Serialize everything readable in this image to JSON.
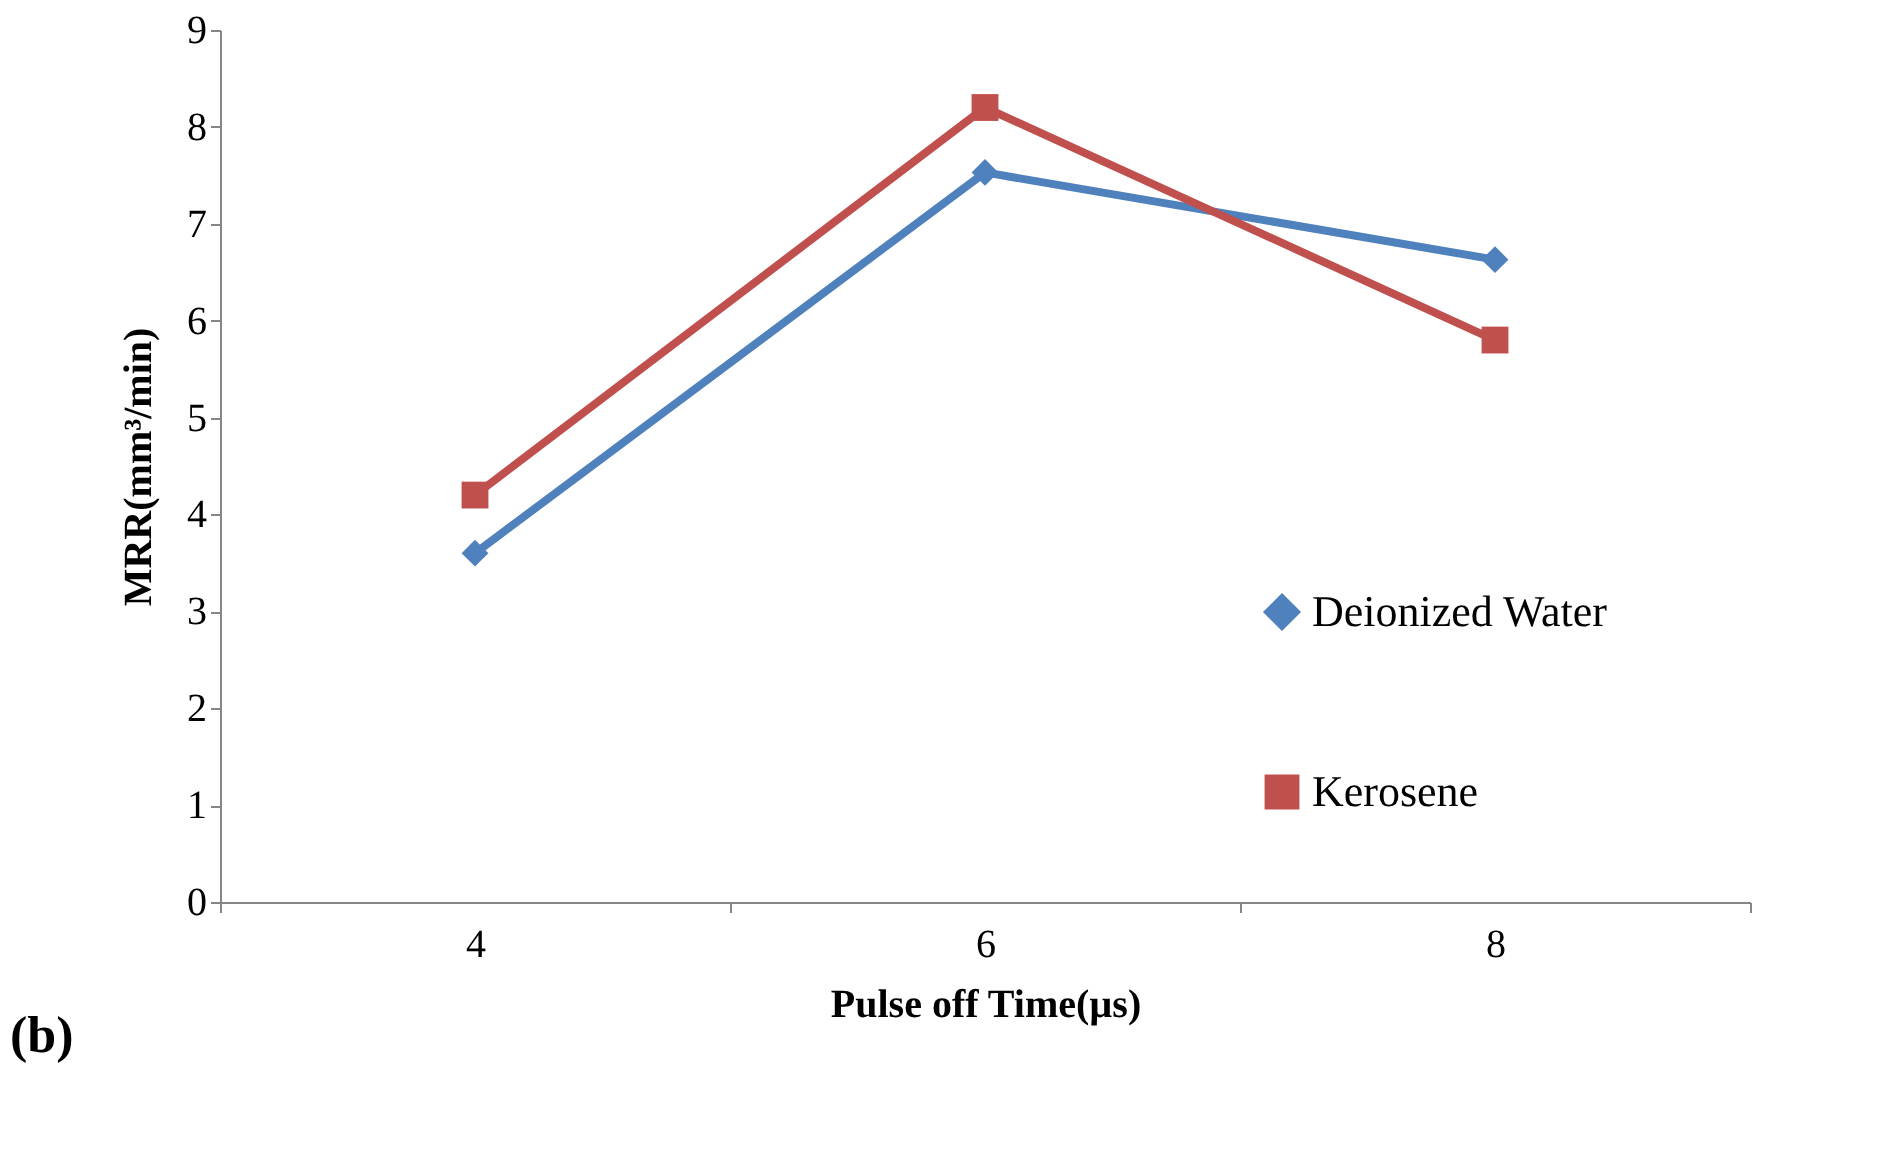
{
  "chart_data": {
    "type": "line",
    "xlabel": "Pulse off Time(µs)",
    "ylabel": "MRR(mm³/min)",
    "categories": [
      "4",
      "6",
      "8"
    ],
    "series": [
      {
        "name": "Deionized Water",
        "color": "#4f81bd",
        "marker": "diamond",
        "values": [
          3.6,
          7.53,
          6.63
        ]
      },
      {
        "name": "Kerosene",
        "color": "#c0504d",
        "marker": "square",
        "values": [
          4.2,
          8.2,
          5.8
        ]
      }
    ],
    "ylim": [
      0,
      9
    ],
    "yticks": [
      0,
      1,
      2,
      3,
      4,
      5,
      6,
      7,
      8,
      9
    ],
    "grid": false,
    "legend": "right",
    "annotations": [
      "(b)"
    ]
  }
}
